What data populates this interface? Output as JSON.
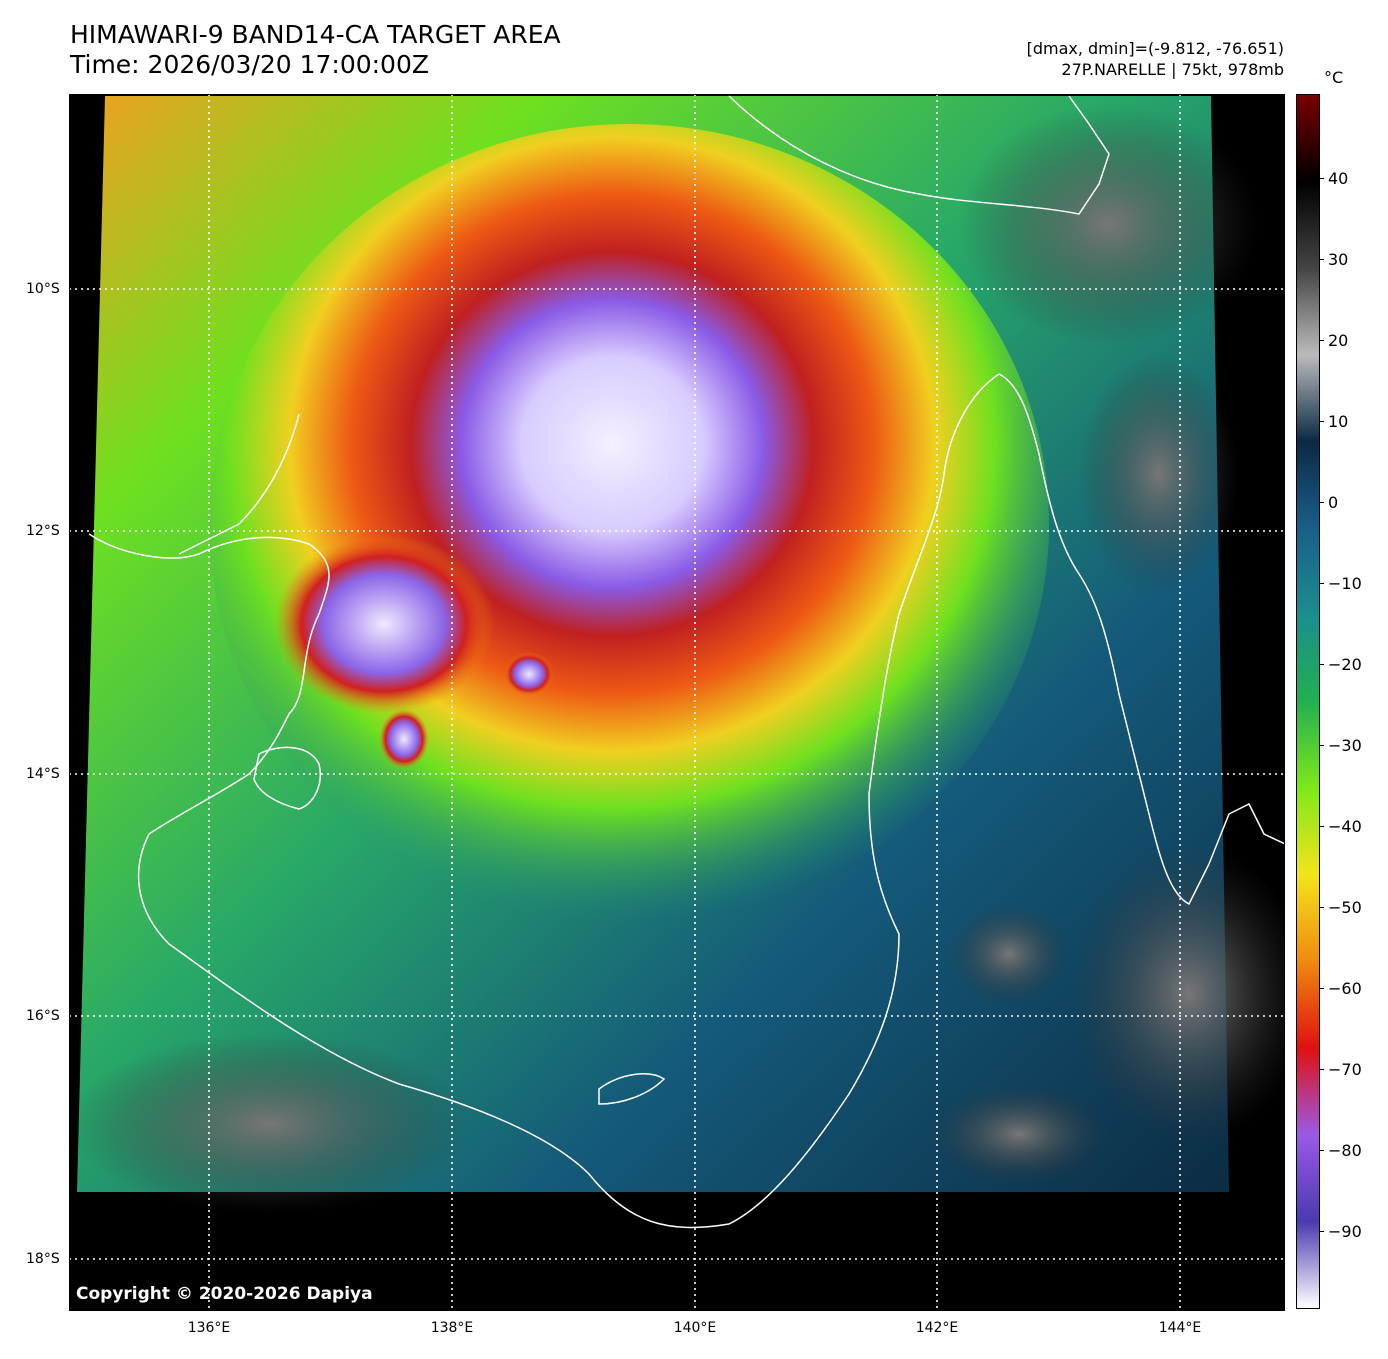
{
  "title": {
    "line1": "HIMAWARI-9 BAND14-CA TARGET AREA",
    "line2": "Time: 2026/03/20 17:00:00Z"
  },
  "info": {
    "line1": "[dmax, dmin]=(-9.812, -76.651)",
    "line2": "27P.NARELLE | 75kt, 978mb"
  },
  "colorbar": {
    "unit": "°C",
    "ticks": [
      "40",
      "30",
      "20",
      "10",
      "0",
      "−10",
      "−20",
      "−30",
      "−40",
      "−50",
      "−60",
      "−70",
      "−80",
      "−90"
    ],
    "stops": [
      "#7a0000",
      "#000000",
      "#444444",
      "#bbbbbb",
      "#0b2a44",
      "#1a5e8a",
      "#1b8e8e",
      "#22b050",
      "#7ee81a",
      "#f4e41a",
      "#f08a10",
      "#e01010",
      "#9b59e6",
      "#4a3ab0",
      "#ffffff"
    ]
  },
  "axes": {
    "lat_labels": [
      "10°S",
      "12°S",
      "14°S",
      "16°S",
      "18°S"
    ],
    "lon_labels": [
      "136°E",
      "138°E",
      "140°E",
      "142°E",
      "144°E"
    ]
  },
  "copyright": "Copyright © 2020-2026 Dapiya"
}
